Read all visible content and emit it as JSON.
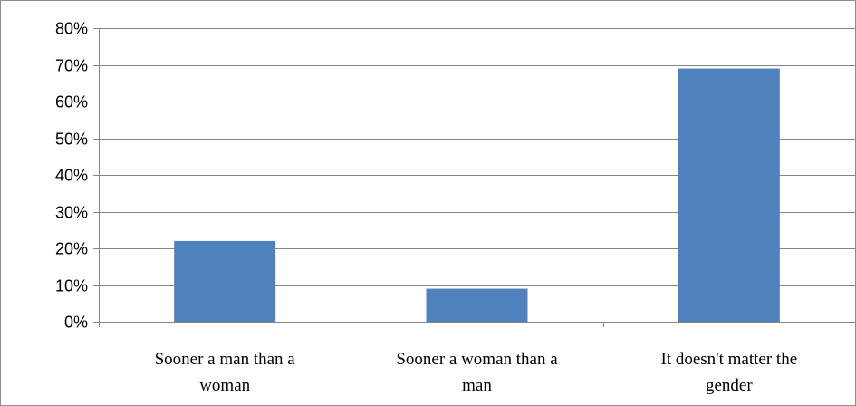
{
  "chart_data": {
    "type": "bar",
    "title": "",
    "xlabel": "",
    "ylabel": "",
    "categories": [
      [
        "Sooner a man than a",
        "woman"
      ],
      [
        "Sooner a woman than a",
        "man"
      ],
      [
        "It doesn't matter the",
        "gender"
      ]
    ],
    "values": [
      0.22,
      0.09,
      0.69
    ],
    "ylim": [
      0,
      0.8
    ],
    "yticks": [
      0,
      0.1,
      0.2,
      0.3,
      0.4,
      0.5,
      0.6,
      0.7,
      0.8
    ],
    "ytick_labels": [
      "0%",
      "10%",
      "20%",
      "30%",
      "40%",
      "50%",
      "60%",
      "70%",
      "80%"
    ],
    "grid": true,
    "legend": false,
    "bar_color": "#4F81BD",
    "grid_color": "#868686"
  }
}
